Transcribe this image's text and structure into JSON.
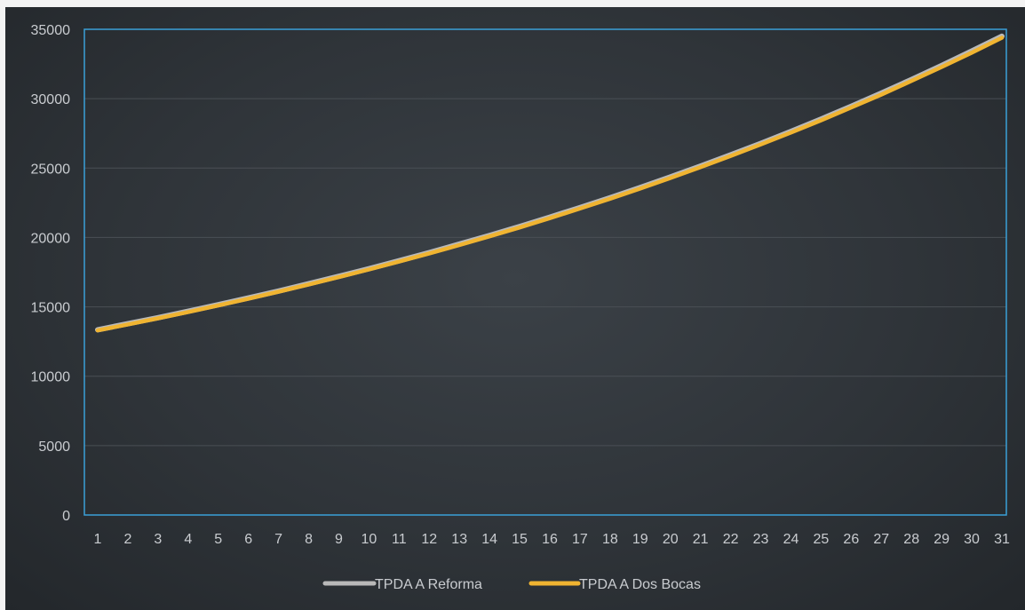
{
  "chart_data": {
    "type": "line",
    "title": "",
    "xlabel": "",
    "ylabel": "",
    "x": [
      1,
      2,
      3,
      4,
      5,
      6,
      7,
      8,
      9,
      10,
      11,
      12,
      13,
      14,
      15,
      16,
      17,
      18,
      19,
      20,
      21,
      22,
      23,
      24,
      25,
      26,
      27,
      28,
      29,
      30,
      31
    ],
    "ylim": [
      0,
      35000
    ],
    "yticks": [
      0,
      5000,
      10000,
      15000,
      20000,
      25000,
      30000,
      35000
    ],
    "grid": true,
    "legend_position": "bottom",
    "series": [
      {
        "name": "TPDA A Reforma",
        "color": "#b9b9b9",
        "values": [
          13350,
          13780,
          14220,
          14680,
          15150,
          15640,
          16140,
          16660,
          17200,
          17750,
          18320,
          18910,
          19520,
          20140,
          20790,
          21460,
          22150,
          22860,
          23600,
          24360,
          25140,
          25950,
          26780,
          27640,
          28530,
          29450,
          30400,
          31380,
          32390,
          33430,
          34500
        ]
      },
      {
        "name": "TPDA A Dos Bocas",
        "color": "#f0b431",
        "values": [
          13300,
          13730,
          14170,
          14630,
          15100,
          15590,
          16090,
          16610,
          17140,
          17690,
          18260,
          18850,
          19450,
          20080,
          20720,
          21390,
          22080,
          22790,
          23520,
          24280,
          25060,
          25870,
          26700,
          27560,
          28440,
          29360,
          30300,
          31280,
          32280,
          33320,
          34390
        ]
      }
    ]
  }
}
